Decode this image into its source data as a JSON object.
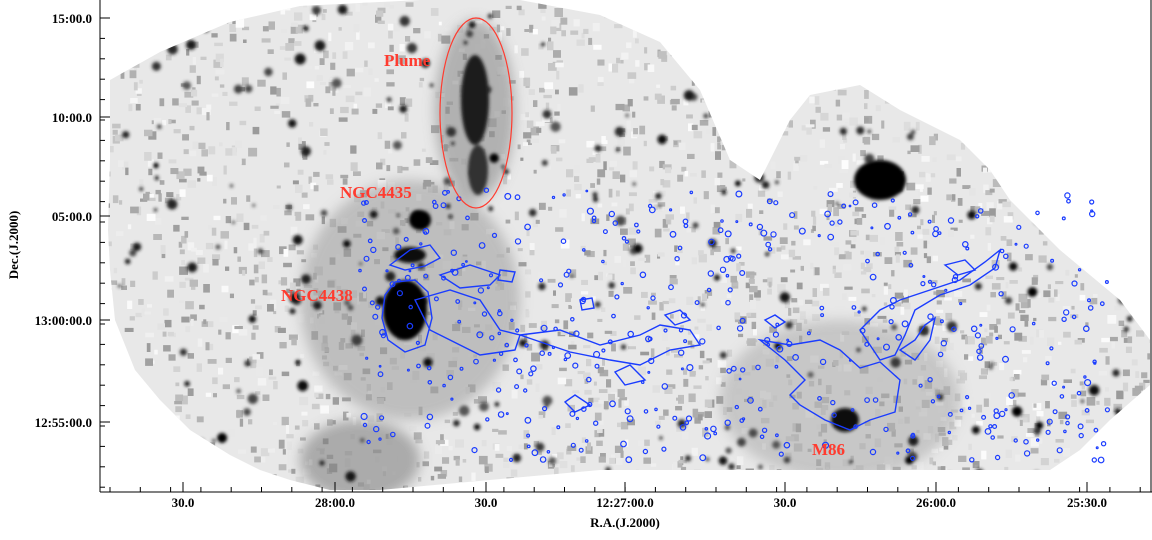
{
  "image": {
    "description_colors": {
      "background": "#ffffff",
      "emission": "#000000",
      "contour": "#1a3cff",
      "annotation": "#ff3b2f"
    }
  },
  "annotations": {
    "plume": "Plume",
    "ngc4435": "NGC4435",
    "ngc4438": "NGC4438",
    "m86": "M86"
  },
  "axes": {
    "xlabel": "R.A.(J.2000)",
    "ylabel": "Dec.(J.2000)",
    "xticks": [
      "30.0",
      "28:00.0",
      "30.0",
      "12:27:00.0",
      "30.0",
      "26:00.0",
      "25:30.0"
    ],
    "yticks": [
      "15:00.0",
      "10:00.0",
      "05:00.0",
      "13:00:00.0",
      "12:55:00.0"
    ]
  }
}
